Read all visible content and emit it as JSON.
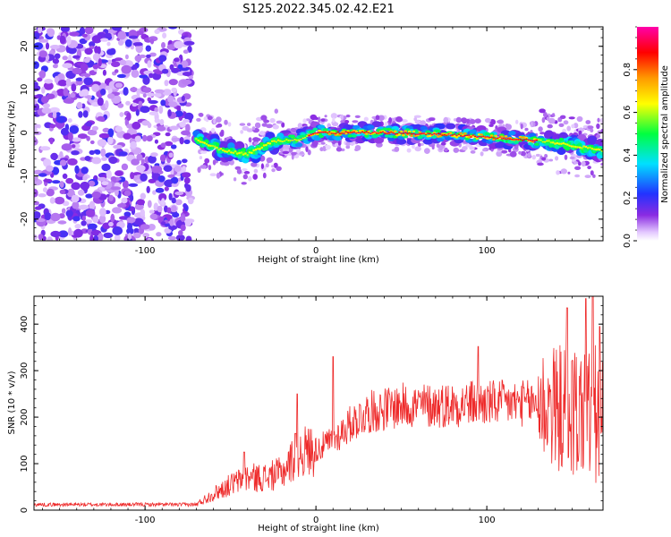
{
  "title": "S125.2022.345.02.42.E21",
  "colors": {
    "snr_line": "#ee2a2a",
    "axis": "#000000",
    "background": "#ffffff"
  },
  "chart_data": [
    {
      "type": "heatmap",
      "xlabel": "Height of straight line (km)",
      "ylabel": "Frequency (Hz)",
      "xlim": [
        -165,
        168
      ],
      "ylim": [
        -25,
        24.5
      ],
      "xticks": [
        -100,
        0,
        100
      ],
      "yticks": [
        -20,
        -10,
        0,
        10,
        20
      ],
      "colormap": "rainbow (purple-blue-cyan-green-yellow-orange-red-pink)",
      "colorbar": {
        "label": "Normalized spectral amplitude",
        "range": [
          0,
          1
        ],
        "ticks": [
          0.0,
          0.2,
          0.4,
          0.6,
          0.8
        ]
      },
      "features": {
        "noise_region_x": [
          -165,
          -73
        ],
        "gap_region_x": [
          -73,
          -68
        ],
        "signal_ridge": [
          {
            "x": -70,
            "freq": -1.5
          },
          {
            "x": -55,
            "freq": -4
          },
          {
            "x": -40,
            "freq": -5
          },
          {
            "x": -25,
            "freq": -2
          },
          {
            "x": -10,
            "freq": -1.5
          },
          {
            "x": 0,
            "freq": 0
          },
          {
            "x": 40,
            "freq": 0
          },
          {
            "x": 80,
            "freq": -0.5
          },
          {
            "x": 120,
            "freq": -1.5
          },
          {
            "x": 135,
            "freq": -2
          },
          {
            "x": 150,
            "freq": -3
          },
          {
            "x": 168,
            "freq": -4
          }
        ]
      }
    },
    {
      "type": "line",
      "xlabel": "Height of straight line (km)",
      "ylabel": "SNR (10 * v/v)",
      "xlim": [
        -165,
        168
      ],
      "ylim": [
        0,
        460
      ],
      "xticks": [
        -100,
        0,
        100
      ],
      "yticks": [
        0,
        100,
        200,
        300,
        400
      ],
      "grid": false,
      "series": [
        {
          "envelope": [
            {
              "x": -165,
              "y": 12
            },
            {
              "x": -100,
              "y": 12
            },
            {
              "x": -70,
              "y": 12
            },
            {
              "x": -60,
              "y": 35
            },
            {
              "x": -50,
              "y": 55
            },
            {
              "x": -40,
              "y": 70
            },
            {
              "x": -30,
              "y": 70
            },
            {
              "x": -20,
              "y": 80
            },
            {
              "x": -10,
              "y": 125
            },
            {
              "x": 0,
              "y": 130
            },
            {
              "x": 10,
              "y": 150
            },
            {
              "x": 20,
              "y": 185
            },
            {
              "x": 30,
              "y": 210
            },
            {
              "x": 50,
              "y": 225
            },
            {
              "x": 70,
              "y": 225
            },
            {
              "x": 90,
              "y": 230
            },
            {
              "x": 110,
              "y": 230
            },
            {
              "x": 130,
              "y": 230
            },
            {
              "x": 140,
              "y": 220
            },
            {
              "x": 150,
              "y": 215
            },
            {
              "x": 160,
              "y": 205
            },
            {
              "x": 168,
              "y": 190
            }
          ],
          "peaks": [
            {
              "x": -42,
              "y": 125
            },
            {
              "x": -12,
              "y": 165
            },
            {
              "x": -11,
              "y": 250
            },
            {
              "x": 10,
              "y": 330
            },
            {
              "x": 95,
              "y": 352
            },
            {
              "x": 147,
              "y": 435
            },
            {
              "x": 158,
              "y": 455
            },
            {
              "x": 162,
              "y": 460
            },
            {
              "x": 166,
              "y": 395
            }
          ]
        }
      ]
    }
  ]
}
